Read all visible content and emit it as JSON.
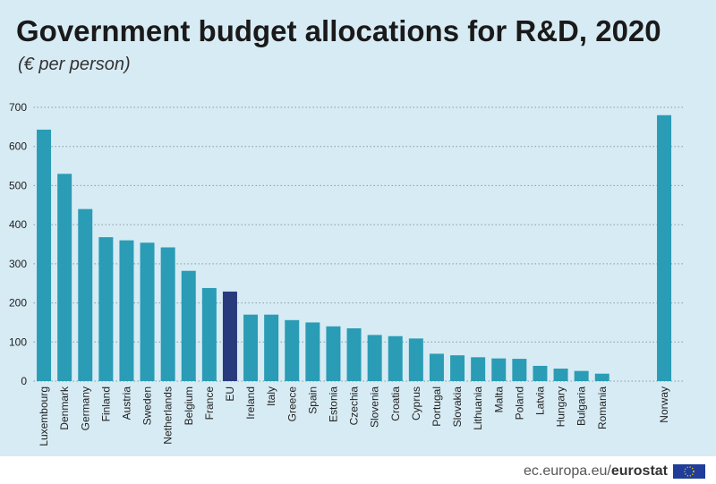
{
  "chart_data": {
    "type": "bar",
    "title": "Government budget allocations for R&D, 2020",
    "subtitle": "(€ per person)",
    "categories": [
      "Luxembourg",
      "Denmark",
      "Germany",
      "Finland",
      "Austria",
      "Sweden",
      "Netherlands",
      "Belgium",
      "France",
      "EU",
      "Ireland",
      "Italy",
      "Greece",
      "Spain",
      "Estonia",
      "Czechia",
      "Slovenia",
      "Croatia",
      "Cyprus",
      "Portugal",
      "Slovakia",
      "Lithuania",
      "Malta",
      "Poland",
      "Latvia",
      "Hungary",
      "Bulgaria",
      "Romania",
      null,
      null,
      "Norway"
    ],
    "values": [
      643,
      530,
      440,
      368,
      360,
      354,
      342,
      282,
      238,
      229,
      170,
      170,
      156,
      150,
      140,
      135,
      118,
      115,
      109,
      70,
      66,
      61,
      58,
      57,
      39,
      32,
      26,
      19,
      null,
      null,
      680
    ],
    "colors": [
      "#2a9cb5",
      "#2a9cb5",
      "#2a9cb5",
      "#2a9cb5",
      "#2a9cb5",
      "#2a9cb5",
      "#2a9cb5",
      "#2a9cb5",
      "#2a9cb5",
      "#283a7c",
      "#2a9cb5",
      "#2a9cb5",
      "#2a9cb5",
      "#2a9cb5",
      "#2a9cb5",
      "#2a9cb5",
      "#2a9cb5",
      "#2a9cb5",
      "#2a9cb5",
      "#2a9cb5",
      "#2a9cb5",
      "#2a9cb5",
      "#2a9cb5",
      "#2a9cb5",
      "#2a9cb5",
      "#2a9cb5",
      "#2a9cb5",
      "#2a9cb5",
      null,
      null,
      "#2a9cb5"
    ],
    "ylim": [
      0,
      700
    ],
    "yticks": [
      0,
      100,
      200,
      300,
      400,
      500,
      600,
      700
    ],
    "grid": true,
    "source": "ec.europa.eu/",
    "brand": "eurostat"
  }
}
